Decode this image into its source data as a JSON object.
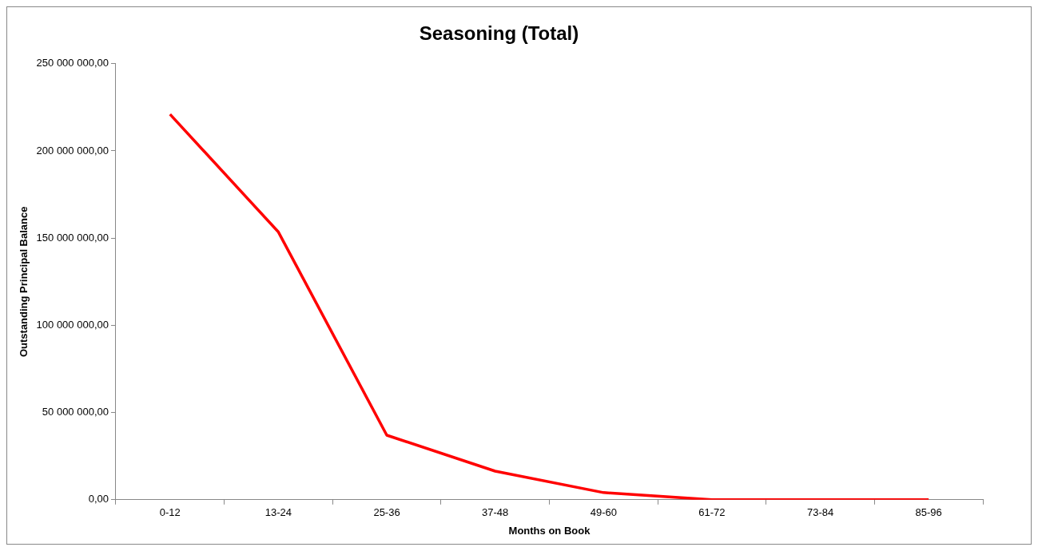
{
  "chart_data": {
    "type": "line",
    "title": "Seasoning (Total)",
    "xlabel": "Months on Book",
    "ylabel": "Outstanding Principal Balance",
    "categories": [
      "0-12",
      "13-24",
      "25-36",
      "37-48",
      "49-60",
      "61-72",
      "73-84",
      "85-96"
    ],
    "series": [
      {
        "color": "#ff0000",
        "values": [
          221000000,
          153500000,
          37000000,
          16400000,
          4100000,
          0,
          0,
          0
        ]
      }
    ],
    "ylim": [
      0,
      250000000
    ],
    "yticks": [
      {
        "value": 0,
        "label": "0,00"
      },
      {
        "value": 50000000,
        "label": "50 000 000,00"
      },
      {
        "value": 100000000,
        "label": "100 000 000,00"
      },
      {
        "value": 150000000,
        "label": "150 000 000,00"
      },
      {
        "value": 200000000,
        "label": "200 000 000,00"
      },
      {
        "value": 250000000,
        "label": "250 000 000,00"
      }
    ],
    "grid": false,
    "legend": false,
    "marker": "none",
    "line_style": "solid"
  }
}
